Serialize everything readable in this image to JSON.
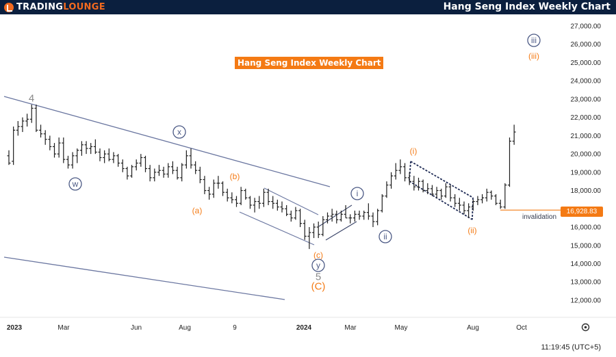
{
  "header": {
    "brand_part1": "TRADING",
    "brand_part2": "LOUNGE",
    "title": "Hang Seng Index Weekly Chart"
  },
  "chart_badge": "Hang Seng Index Weekly Chart",
  "colors": {
    "header_bg": "#0b1f3e",
    "accent_orange": "#f47a14",
    "wave_navy": "#4c5a85",
    "bars": "#1c1c1c"
  },
  "icons": {
    "logo": "trading-lounge-logo-icon",
    "settings": "gear-icon"
  },
  "status": {
    "clock": "11:19:45 (UTC+5)"
  },
  "chart_data": {
    "type": "ohlc",
    "title": "Hang Seng Index Weekly Chart",
    "y_axis": {
      "side": "right",
      "ticks": [
        "27,000.00",
        "26,000.00",
        "25,000.00",
        "24,000.00",
        "23,000.00",
        "22,000.00",
        "21,000.00",
        "20,000.00",
        "19,000.00",
        "18,000.00",
        "17,000.00",
        "16,000.00",
        "15,000.00",
        "14,000.00",
        "13,000.00",
        "12,000.00"
      ],
      "tick_values": [
        27000,
        26000,
        25000,
        24000,
        23000,
        22000,
        21000,
        20000,
        19000,
        18000,
        17000,
        16000,
        15000,
        14000,
        13000,
        12000
      ],
      "ylim": [
        11300,
        27700
      ]
    },
    "x_axis": {
      "ticks": [
        "2023",
        "Mar",
        "Jun",
        "Aug",
        "9",
        "2024",
        "Mar",
        "May",
        "Aug",
        "Oct"
      ],
      "bold_ticks": [
        "2023",
        "2024"
      ]
    },
    "current_price": {
      "label": "16,928.83",
      "value": 16928.83
    },
    "invalidation": {
      "label": "invalidation",
      "value": 16928.83
    },
    "bars_weekly": [
      {
        "o": 19900,
        "h": 20200,
        "l": 19400,
        "c": 19500
      },
      {
        "o": 19600,
        "h": 21500,
        "l": 19400,
        "c": 21300
      },
      {
        "o": 21300,
        "h": 21800,
        "l": 21000,
        "c": 21500
      },
      {
        "o": 21500,
        "h": 22000,
        "l": 21200,
        "c": 21800
      },
      {
        "o": 21800,
        "h": 22200,
        "l": 21500,
        "c": 21900
      },
      {
        "o": 21900,
        "h": 22700,
        "l": 21700,
        "c": 22500
      },
      {
        "o": 22500,
        "h": 22700,
        "l": 21200,
        "c": 21300
      },
      {
        "o": 21300,
        "h": 21600,
        "l": 20900,
        "c": 21100
      },
      {
        "o": 21100,
        "h": 21300,
        "l": 20500,
        "c": 20800
      },
      {
        "o": 20800,
        "h": 21000,
        "l": 20200,
        "c": 20400
      },
      {
        "o": 20400,
        "h": 20600,
        "l": 19800,
        "c": 20000
      },
      {
        "o": 20000,
        "h": 20900,
        "l": 19800,
        "c": 20600
      },
      {
        "o": 20600,
        "h": 20900,
        "l": 19500,
        "c": 19700
      },
      {
        "o": 19700,
        "h": 19900,
        "l": 19200,
        "c": 19400
      },
      {
        "o": 19400,
        "h": 20100,
        "l": 19200,
        "c": 19900
      },
      {
        "o": 19900,
        "h": 20300,
        "l": 19500,
        "c": 20200
      },
      {
        "o": 20200,
        "h": 20700,
        "l": 19900,
        "c": 20500
      },
      {
        "o": 20500,
        "h": 20700,
        "l": 20000,
        "c": 20300
      },
      {
        "o": 20300,
        "h": 20600,
        "l": 20000,
        "c": 20400
      },
      {
        "o": 20400,
        "h": 20800,
        "l": 20000,
        "c": 20100
      },
      {
        "o": 20100,
        "h": 20300,
        "l": 19600,
        "c": 19800
      },
      {
        "o": 19800,
        "h": 20200,
        "l": 19500,
        "c": 20000
      },
      {
        "o": 20000,
        "h": 20300,
        "l": 19600,
        "c": 19700
      },
      {
        "o": 19700,
        "h": 20100,
        "l": 19500,
        "c": 19900
      },
      {
        "o": 19900,
        "h": 20000,
        "l": 19300,
        "c": 19500
      },
      {
        "o": 19500,
        "h": 19700,
        "l": 19000,
        "c": 19200
      },
      {
        "o": 19200,
        "h": 19300,
        "l": 18600,
        "c": 18800
      },
      {
        "o": 18800,
        "h": 19400,
        "l": 18700,
        "c": 19300
      },
      {
        "o": 19300,
        "h": 19700,
        "l": 19100,
        "c": 19500
      },
      {
        "o": 19500,
        "h": 20000,
        "l": 19300,
        "c": 19800
      },
      {
        "o": 19800,
        "h": 19900,
        "l": 19000,
        "c": 19200
      },
      {
        "o": 19200,
        "h": 19400,
        "l": 18500,
        "c": 18700
      },
      {
        "o": 18700,
        "h": 19200,
        "l": 18500,
        "c": 19000
      },
      {
        "o": 19000,
        "h": 19400,
        "l": 18800,
        "c": 19100
      },
      {
        "o": 19100,
        "h": 19300,
        "l": 18700,
        "c": 18900
      },
      {
        "o": 18900,
        "h": 19500,
        "l": 18700,
        "c": 19300
      },
      {
        "o": 19300,
        "h": 19600,
        "l": 18900,
        "c": 19100
      },
      {
        "o": 19100,
        "h": 19300,
        "l": 18600,
        "c": 18700
      },
      {
        "o": 18700,
        "h": 19500,
        "l": 18500,
        "c": 19400
      },
      {
        "o": 19400,
        "h": 20200,
        "l": 19200,
        "c": 19900
      },
      {
        "o": 19900,
        "h": 20300,
        "l": 19200,
        "c": 19400
      },
      {
        "o": 19400,
        "h": 19600,
        "l": 18900,
        "c": 19100
      },
      {
        "o": 19100,
        "h": 19300,
        "l": 18400,
        "c": 18600
      },
      {
        "o": 18600,
        "h": 18800,
        "l": 17800,
        "c": 18000
      },
      {
        "o": 18000,
        "h": 18200,
        "l": 17500,
        "c": 17800
      },
      {
        "o": 17800,
        "h": 18600,
        "l": 17600,
        "c": 18400
      },
      {
        "o": 18400,
        "h": 18800,
        "l": 18100,
        "c": 18400
      },
      {
        "o": 18400,
        "h": 18500,
        "l": 17700,
        "c": 17900
      },
      {
        "o": 17900,
        "h": 18100,
        "l": 17400,
        "c": 17600
      },
      {
        "o": 17600,
        "h": 17900,
        "l": 17300,
        "c": 17500
      },
      {
        "o": 17500,
        "h": 17700,
        "l": 17100,
        "c": 17300
      },
      {
        "o": 17300,
        "h": 18200,
        "l": 17200,
        "c": 18000
      },
      {
        "o": 18000,
        "h": 18100,
        "l": 17500,
        "c": 17600
      },
      {
        "o": 17600,
        "h": 17700,
        "l": 17000,
        "c": 17200
      },
      {
        "o": 17200,
        "h": 17600,
        "l": 16800,
        "c": 17400
      },
      {
        "o": 17400,
        "h": 17700,
        "l": 17000,
        "c": 17300
      },
      {
        "o": 17300,
        "h": 18100,
        "l": 17100,
        "c": 17900
      },
      {
        "o": 17900,
        "h": 18100,
        "l": 17200,
        "c": 17400
      },
      {
        "o": 17400,
        "h": 17700,
        "l": 17000,
        "c": 17300
      },
      {
        "o": 17300,
        "h": 17500,
        "l": 16900,
        "c": 17100
      },
      {
        "o": 17100,
        "h": 17400,
        "l": 16800,
        "c": 17000
      },
      {
        "o": 17000,
        "h": 17200,
        "l": 16600,
        "c": 16700
      },
      {
        "o": 16700,
        "h": 16900,
        "l": 16300,
        "c": 16500
      },
      {
        "o": 16500,
        "h": 17100,
        "l": 16400,
        "c": 16900
      },
      {
        "o": 16900,
        "h": 17000,
        "l": 16000,
        "c": 16200
      },
      {
        "o": 16200,
        "h": 16400,
        "l": 15300,
        "c": 15500
      },
      {
        "o": 15500,
        "h": 16000,
        "l": 14800,
        "c": 15700
      },
      {
        "o": 15700,
        "h": 16200,
        "l": 15400,
        "c": 16000
      },
      {
        "o": 16000,
        "h": 16300,
        "l": 15400,
        "c": 15600
      },
      {
        "o": 15600,
        "h": 16600,
        "l": 15500,
        "c": 16400
      },
      {
        "o": 16400,
        "h": 16800,
        "l": 16200,
        "c": 16600
      },
      {
        "o": 16600,
        "h": 17000,
        "l": 16300,
        "c": 16700
      },
      {
        "o": 16700,
        "h": 16900,
        "l": 16200,
        "c": 16400
      },
      {
        "o": 16400,
        "h": 16900,
        "l": 16300,
        "c": 16700
      },
      {
        "o": 16700,
        "h": 17200,
        "l": 16500,
        "c": 16500
      },
      {
        "o": 16500,
        "h": 16700,
        "l": 16200,
        "c": 16500
      },
      {
        "o": 16500,
        "h": 16900,
        "l": 16300,
        "c": 16700
      },
      {
        "o": 16700,
        "h": 16900,
        "l": 16400,
        "c": 16600
      },
      {
        "o": 16600,
        "h": 16900,
        "l": 16400,
        "c": 16800
      },
      {
        "o": 16800,
        "h": 17300,
        "l": 16400,
        "c": 16600
      },
      {
        "o": 16600,
        "h": 16800,
        "l": 16000,
        "c": 16300
      },
      {
        "o": 16300,
        "h": 17000,
        "l": 16100,
        "c": 16900
      },
      {
        "o": 16900,
        "h": 17800,
        "l": 16800,
        "c": 17700
      },
      {
        "o": 17700,
        "h": 18500,
        "l": 17600,
        "c": 18300
      },
      {
        "o": 18300,
        "h": 19000,
        "l": 18100,
        "c": 18800
      },
      {
        "o": 18800,
        "h": 19500,
        "l": 18600,
        "c": 19100
      },
      {
        "o": 19100,
        "h": 19700,
        "l": 18900,
        "c": 19300
      },
      {
        "o": 19300,
        "h": 19500,
        "l": 18500,
        "c": 18700
      },
      {
        "o": 18700,
        "h": 19000,
        "l": 18300,
        "c": 18500
      },
      {
        "o": 18500,
        "h": 18800,
        "l": 18000,
        "c": 18200
      },
      {
        "o": 18200,
        "h": 18700,
        "l": 18000,
        "c": 18500
      },
      {
        "o": 18500,
        "h": 18600,
        "l": 17900,
        "c": 18000
      },
      {
        "o": 18000,
        "h": 18400,
        "l": 17800,
        "c": 18100
      },
      {
        "o": 18100,
        "h": 18300,
        "l": 17700,
        "c": 17800
      },
      {
        "o": 17800,
        "h": 18200,
        "l": 17600,
        "c": 18000
      },
      {
        "o": 18000,
        "h": 18100,
        "l": 17500,
        "c": 17700
      },
      {
        "o": 17700,
        "h": 18400,
        "l": 17600,
        "c": 18200
      },
      {
        "o": 18200,
        "h": 18300,
        "l": 17400,
        "c": 17600
      },
      {
        "o": 17600,
        "h": 17800,
        "l": 17100,
        "c": 17300
      },
      {
        "o": 17300,
        "h": 17600,
        "l": 16900,
        "c": 17200
      },
      {
        "o": 17200,
        "h": 17400,
        "l": 16700,
        "c": 16900
      },
      {
        "o": 16900,
        "h": 17300,
        "l": 16500,
        "c": 17100
      },
      {
        "o": 17100,
        "h": 17500,
        "l": 16900,
        "c": 17400
      },
      {
        "o": 17400,
        "h": 17700,
        "l": 17200,
        "c": 17500
      },
      {
        "o": 17500,
        "h": 17800,
        "l": 17300,
        "c": 17600
      },
      {
        "o": 17600,
        "h": 18100,
        "l": 17400,
        "c": 17900
      },
      {
        "o": 17900,
        "h": 18000,
        "l": 17500,
        "c": 17700
      },
      {
        "o": 17700,
        "h": 17800,
        "l": 17200,
        "c": 17300
      },
      {
        "o": 17300,
        "h": 17500,
        "l": 17000,
        "c": 17100
      },
      {
        "o": 17100,
        "h": 18400,
        "l": 17000,
        "c": 18300
      },
      {
        "o": 18300,
        "h": 20900,
        "l": 18200,
        "c": 20700
      },
      {
        "o": 20700,
        "h": 21600,
        "l": 20500,
        "c": 21200
      }
    ],
    "wave_labels": [
      {
        "text": "4",
        "style": "gray"
      },
      {
        "text": "w",
        "style": "circle-navy"
      },
      {
        "text": "x",
        "style": "circle-navy"
      },
      {
        "text": "(a)",
        "style": "orange"
      },
      {
        "text": "(b)",
        "style": "orange"
      },
      {
        "text": "(c)",
        "style": "orange"
      },
      {
        "text": "y",
        "style": "circle-navy"
      },
      {
        "text": "5",
        "style": "gray"
      },
      {
        "text": "(C)",
        "style": "orange-big"
      },
      {
        "text": "i",
        "style": "circle-navy"
      },
      {
        "text": "ii",
        "style": "circle-navy"
      },
      {
        "text": "(i)",
        "style": "orange"
      },
      {
        "text": "(ii)",
        "style": "orange"
      },
      {
        "text": "iii",
        "style": "circle-navy"
      },
      {
        "text": "(iii)",
        "style": "orange"
      }
    ]
  }
}
